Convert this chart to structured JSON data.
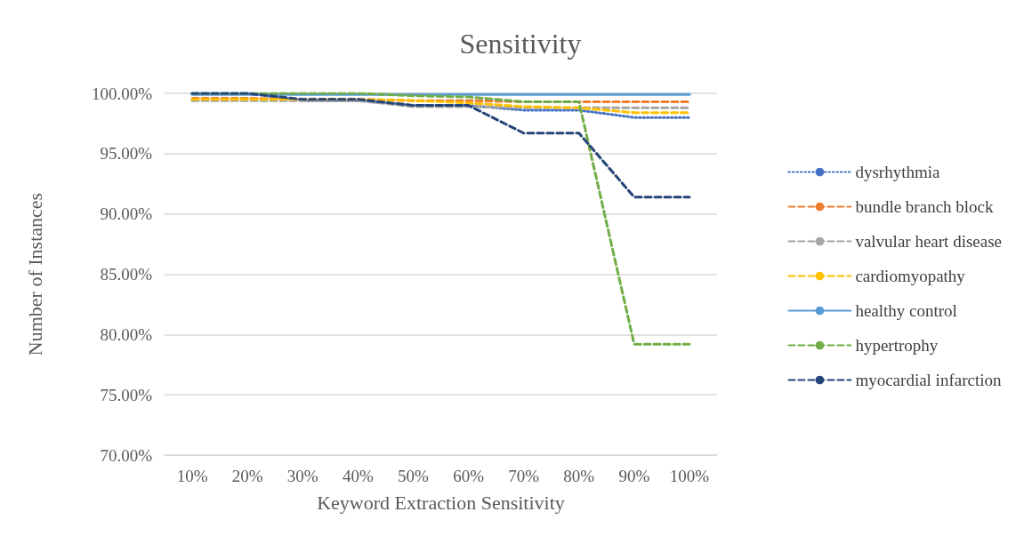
{
  "chart_data": {
    "type": "line",
    "title": "Sensitivity",
    "xlabel": "Keyword Extraction Sensitivity",
    "ylabel": "Number of Instances",
    "categories": [
      "10%",
      "20%",
      "30%",
      "40%",
      "50%",
      "60%",
      "70%",
      "80%",
      "90%",
      "100%"
    ],
    "series": [
      {
        "name": "dysrhythmia",
        "color": "#4472c4",
        "line_style": "dotted",
        "values": [
          100.0,
          100.0,
          99.4,
          99.4,
          99.0,
          99.0,
          98.6,
          98.6,
          98.0,
          98.0
        ]
      },
      {
        "name": "bundle branch block",
        "color": "#ed7d31",
        "line_style": "dashed",
        "values": [
          99.6,
          99.6,
          99.5,
          99.5,
          99.4,
          99.4,
          99.3,
          99.3,
          99.3,
          99.3
        ]
      },
      {
        "name": "valvular heart disease",
        "color": "#a5a5a5",
        "line_style": "dashed",
        "values": [
          99.4,
          99.4,
          99.4,
          99.4,
          98.9,
          98.9,
          98.8,
          98.8,
          98.8,
          98.8
        ]
      },
      {
        "name": "cardiomyopathy",
        "color": "#ffc000",
        "line_style": "dashed",
        "values": [
          99.5,
          99.5,
          99.5,
          99.5,
          99.4,
          99.2,
          98.9,
          98.8,
          98.4,
          98.4
        ]
      },
      {
        "name": "healthy control",
        "color": "#5b9bd5",
        "line_style": "solid",
        "values": [
          99.9,
          99.9,
          99.9,
          99.9,
          99.9,
          99.9,
          99.9,
          99.9,
          99.9,
          99.9
        ]
      },
      {
        "name": "hypertrophy",
        "color": "#70ad47",
        "line_style": "dashed",
        "values": [
          100.0,
          100.0,
          100.0,
          100.0,
          99.8,
          99.7,
          99.3,
          99.3,
          79.2,
          79.2
        ]
      },
      {
        "name": "myocardial infarction",
        "color": "#264478",
        "line_style": "dashed",
        "values": [
          100.0,
          100.0,
          99.5,
          99.5,
          99.0,
          99.0,
          96.7,
          96.7,
          91.4,
          91.4
        ]
      }
    ],
    "ylim": [
      70,
      100
    ],
    "yticks": [
      {
        "value": 70,
        "label": "70.00%"
      },
      {
        "value": 75,
        "label": "75.00%"
      },
      {
        "value": 80,
        "label": "80.00%"
      },
      {
        "value": 85,
        "label": "85.00%"
      },
      {
        "value": 90,
        "label": "90.00%"
      },
      {
        "value": 95,
        "label": "95.00%"
      },
      {
        "value": 100,
        "label": "100.00%"
      }
    ],
    "grid": "y",
    "legend": "right",
    "marker": "none"
  }
}
